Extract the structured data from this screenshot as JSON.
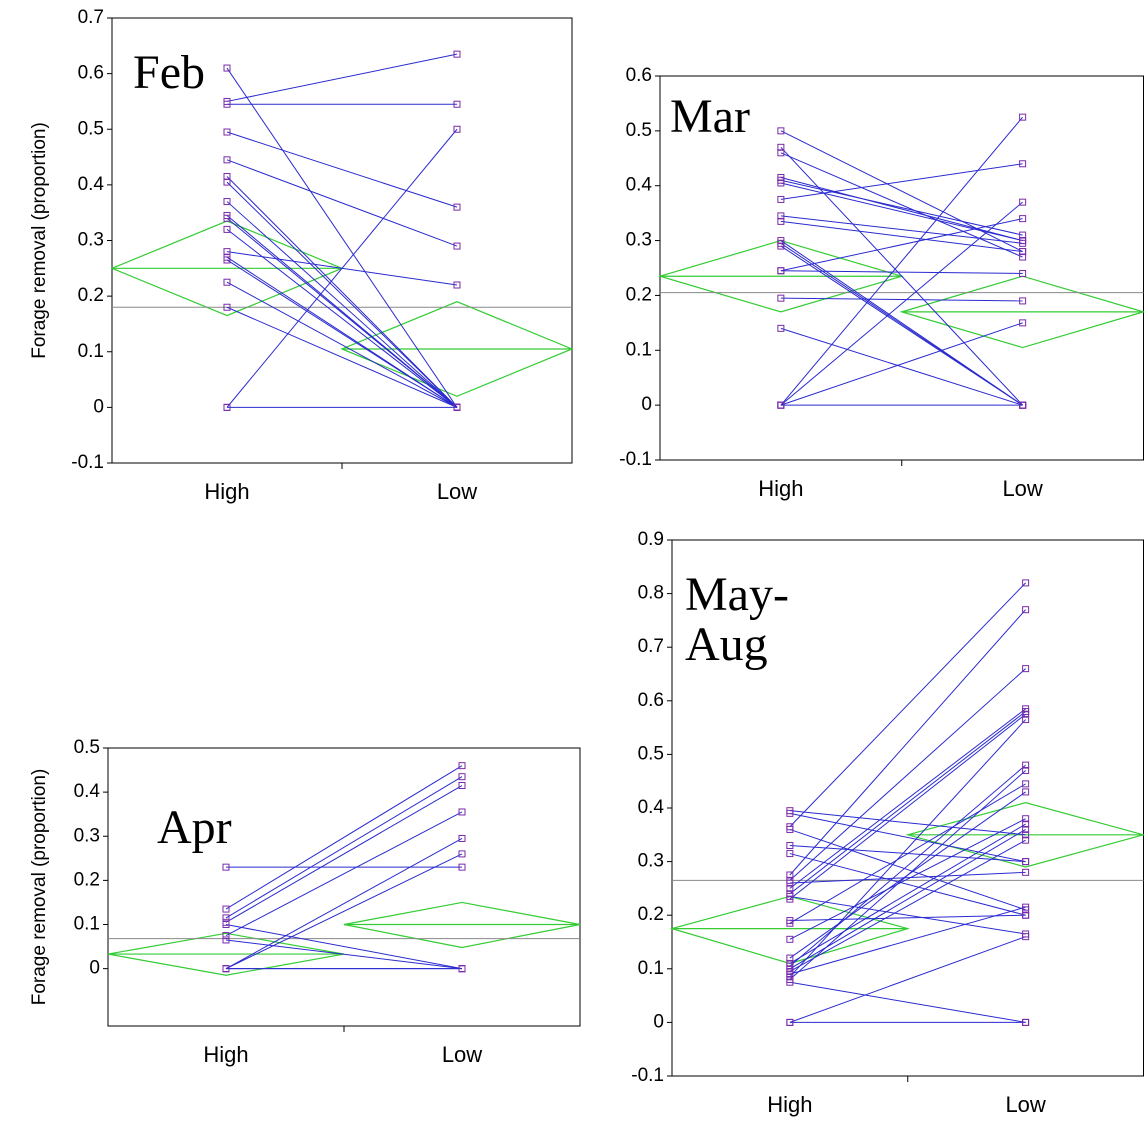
{
  "chart_data": [
    {
      "type": "pairs",
      "title": "Feb",
      "ylabel": "Forage removal (proportion)",
      "categories": [
        "High",
        "Low"
      ],
      "ylim": [
        -0.1,
        0.7
      ],
      "yticks": [
        -0.1,
        0,
        0.1,
        0.2,
        0.3,
        0.4,
        0.5,
        0.6,
        0.7
      ],
      "line_color": "#2a2ad0",
      "marker_color": "#7a2aa8",
      "diamond_color": "#33cc33",
      "grand_mean_color": "#888888",
      "grand_mean": 0.18,
      "means": [
        {
          "mean": 0.25,
          "lower": 0.165,
          "upper": 0.335
        },
        {
          "mean": 0.105,
          "lower": 0.02,
          "upper": 0.19
        }
      ],
      "pairs": [
        [
          0.61,
          0
        ],
        [
          0.55,
          0.635
        ],
        [
          0.545,
          0.545
        ],
        [
          0.495,
          0.36
        ],
        [
          0.445,
          0.29
        ],
        [
          0.415,
          0
        ],
        [
          0.405,
          0
        ],
        [
          0.37,
          0
        ],
        [
          0.345,
          0
        ],
        [
          0.34,
          0
        ],
        [
          0.32,
          0
        ],
        [
          0.28,
          0.22
        ],
        [
          0.27,
          0
        ],
        [
          0.265,
          0
        ],
        [
          0.225,
          0
        ],
        [
          0.18,
          0
        ],
        [
          0,
          0.5
        ],
        [
          0,
          0
        ]
      ]
    },
    {
      "type": "pairs",
      "title": "Mar",
      "categories": [
        "High",
        "Low"
      ],
      "ylim": [
        -0.1,
        0.6
      ],
      "yticks": [
        -0.1,
        0,
        0.1,
        0.2,
        0.3,
        0.4,
        0.5,
        0.6
      ],
      "line_color": "#2a2ad0",
      "marker_color": "#7a2aa8",
      "diamond_color": "#33cc33",
      "grand_mean_color": "#888888",
      "grand_mean": 0.205,
      "means": [
        {
          "mean": 0.235,
          "lower": 0.17,
          "upper": 0.3
        },
        {
          "mean": 0.17,
          "lower": 0.105,
          "upper": 0.235
        }
      ],
      "pairs": [
        [
          0.5,
          0.28
        ],
        [
          0.47,
          0
        ],
        [
          0.46,
          0.27
        ],
        [
          0.415,
          0.3
        ],
        [
          0.41,
          0.31
        ],
        [
          0.405,
          0.3
        ],
        [
          0.375,
          0.44
        ],
        [
          0.345,
          0.295
        ],
        [
          0.335,
          0.28
        ],
        [
          0.3,
          0
        ],
        [
          0.295,
          0
        ],
        [
          0.29,
          0
        ],
        [
          0.245,
          0.34
        ],
        [
          0.245,
          0.24
        ],
        [
          0.195,
          0.19
        ],
        [
          0.14,
          0
        ],
        [
          0,
          0.525
        ],
        [
          0,
          0.37
        ],
        [
          0,
          0.15
        ],
        [
          0,
          0
        ]
      ]
    },
    {
      "type": "pairs",
      "title": "Apr",
      "ylabel": "Forage removal (proportion)",
      "categories": [
        "High",
        "Low"
      ],
      "ylim": [
        -0.13,
        0.5
      ],
      "yticks": [
        0,
        0.1,
        0.2,
        0.3,
        0.4,
        0.5
      ],
      "line_color": "#2a2ad0",
      "marker_color": "#7a2aa8",
      "diamond_color": "#33cc33",
      "grand_mean_color": "#888888",
      "grand_mean": 0.068,
      "means": [
        {
          "mean": 0.033,
          "lower": -0.015,
          "upper": 0.08
        },
        {
          "mean": 0.1,
          "lower": 0.048,
          "upper": 0.15
        }
      ],
      "pairs": [
        [
          0.23,
          0.23
        ],
        [
          0.135,
          0.46
        ],
        [
          0.115,
          0.435
        ],
        [
          0.105,
          0.415
        ],
        [
          0.1,
          0
        ],
        [
          0.075,
          0.355
        ],
        [
          0.065,
          0
        ],
        [
          0,
          0.295
        ],
        [
          0,
          0.26
        ],
        [
          0,
          0
        ],
        [
          0,
          0
        ]
      ]
    },
    {
      "type": "pairs",
      "title": "May-Aug",
      "categories": [
        "High",
        "Low"
      ],
      "ylim": [
        -0.1,
        0.9
      ],
      "yticks": [
        -0.1,
        0,
        0.1,
        0.2,
        0.3,
        0.4,
        0.5,
        0.6,
        0.7,
        0.8,
        0.9
      ],
      "line_color": "#2a2ad0",
      "marker_color": "#7a2aa8",
      "diamond_color": "#33cc33",
      "grand_mean_color": "#888888",
      "grand_mean": 0.265,
      "means": [
        {
          "mean": 0.175,
          "lower": 0.11,
          "upper": 0.235
        },
        {
          "mean": 0.35,
          "lower": 0.29,
          "upper": 0.41
        }
      ],
      "pairs": [
        [
          0.395,
          0.35
        ],
        [
          0.39,
          0.3
        ],
        [
          0.365,
          0.82
        ],
        [
          0.36,
          0.21
        ],
        [
          0.33,
          0.3
        ],
        [
          0.315,
          0.2
        ],
        [
          0.275,
          0.77
        ],
        [
          0.265,
          0.66
        ],
        [
          0.26,
          0.28
        ],
        [
          0.25,
          0.585
        ],
        [
          0.24,
          0.58
        ],
        [
          0.235,
          0.165
        ],
        [
          0.23,
          0.575
        ],
        [
          0.19,
          0.2
        ],
        [
          0.185,
          0.445
        ],
        [
          0.155,
          0.38
        ],
        [
          0.12,
          0.43
        ],
        [
          0.11,
          0.37
        ],
        [
          0.105,
          0.48
        ],
        [
          0.1,
          0.36
        ],
        [
          0.095,
          0.34
        ],
        [
          0.09,
          0.215
        ],
        [
          0.085,
          0.565
        ],
        [
          0.08,
          0.47
        ],
        [
          0.075,
          0
        ],
        [
          0,
          0.16
        ],
        [
          0,
          0
        ]
      ]
    }
  ]
}
